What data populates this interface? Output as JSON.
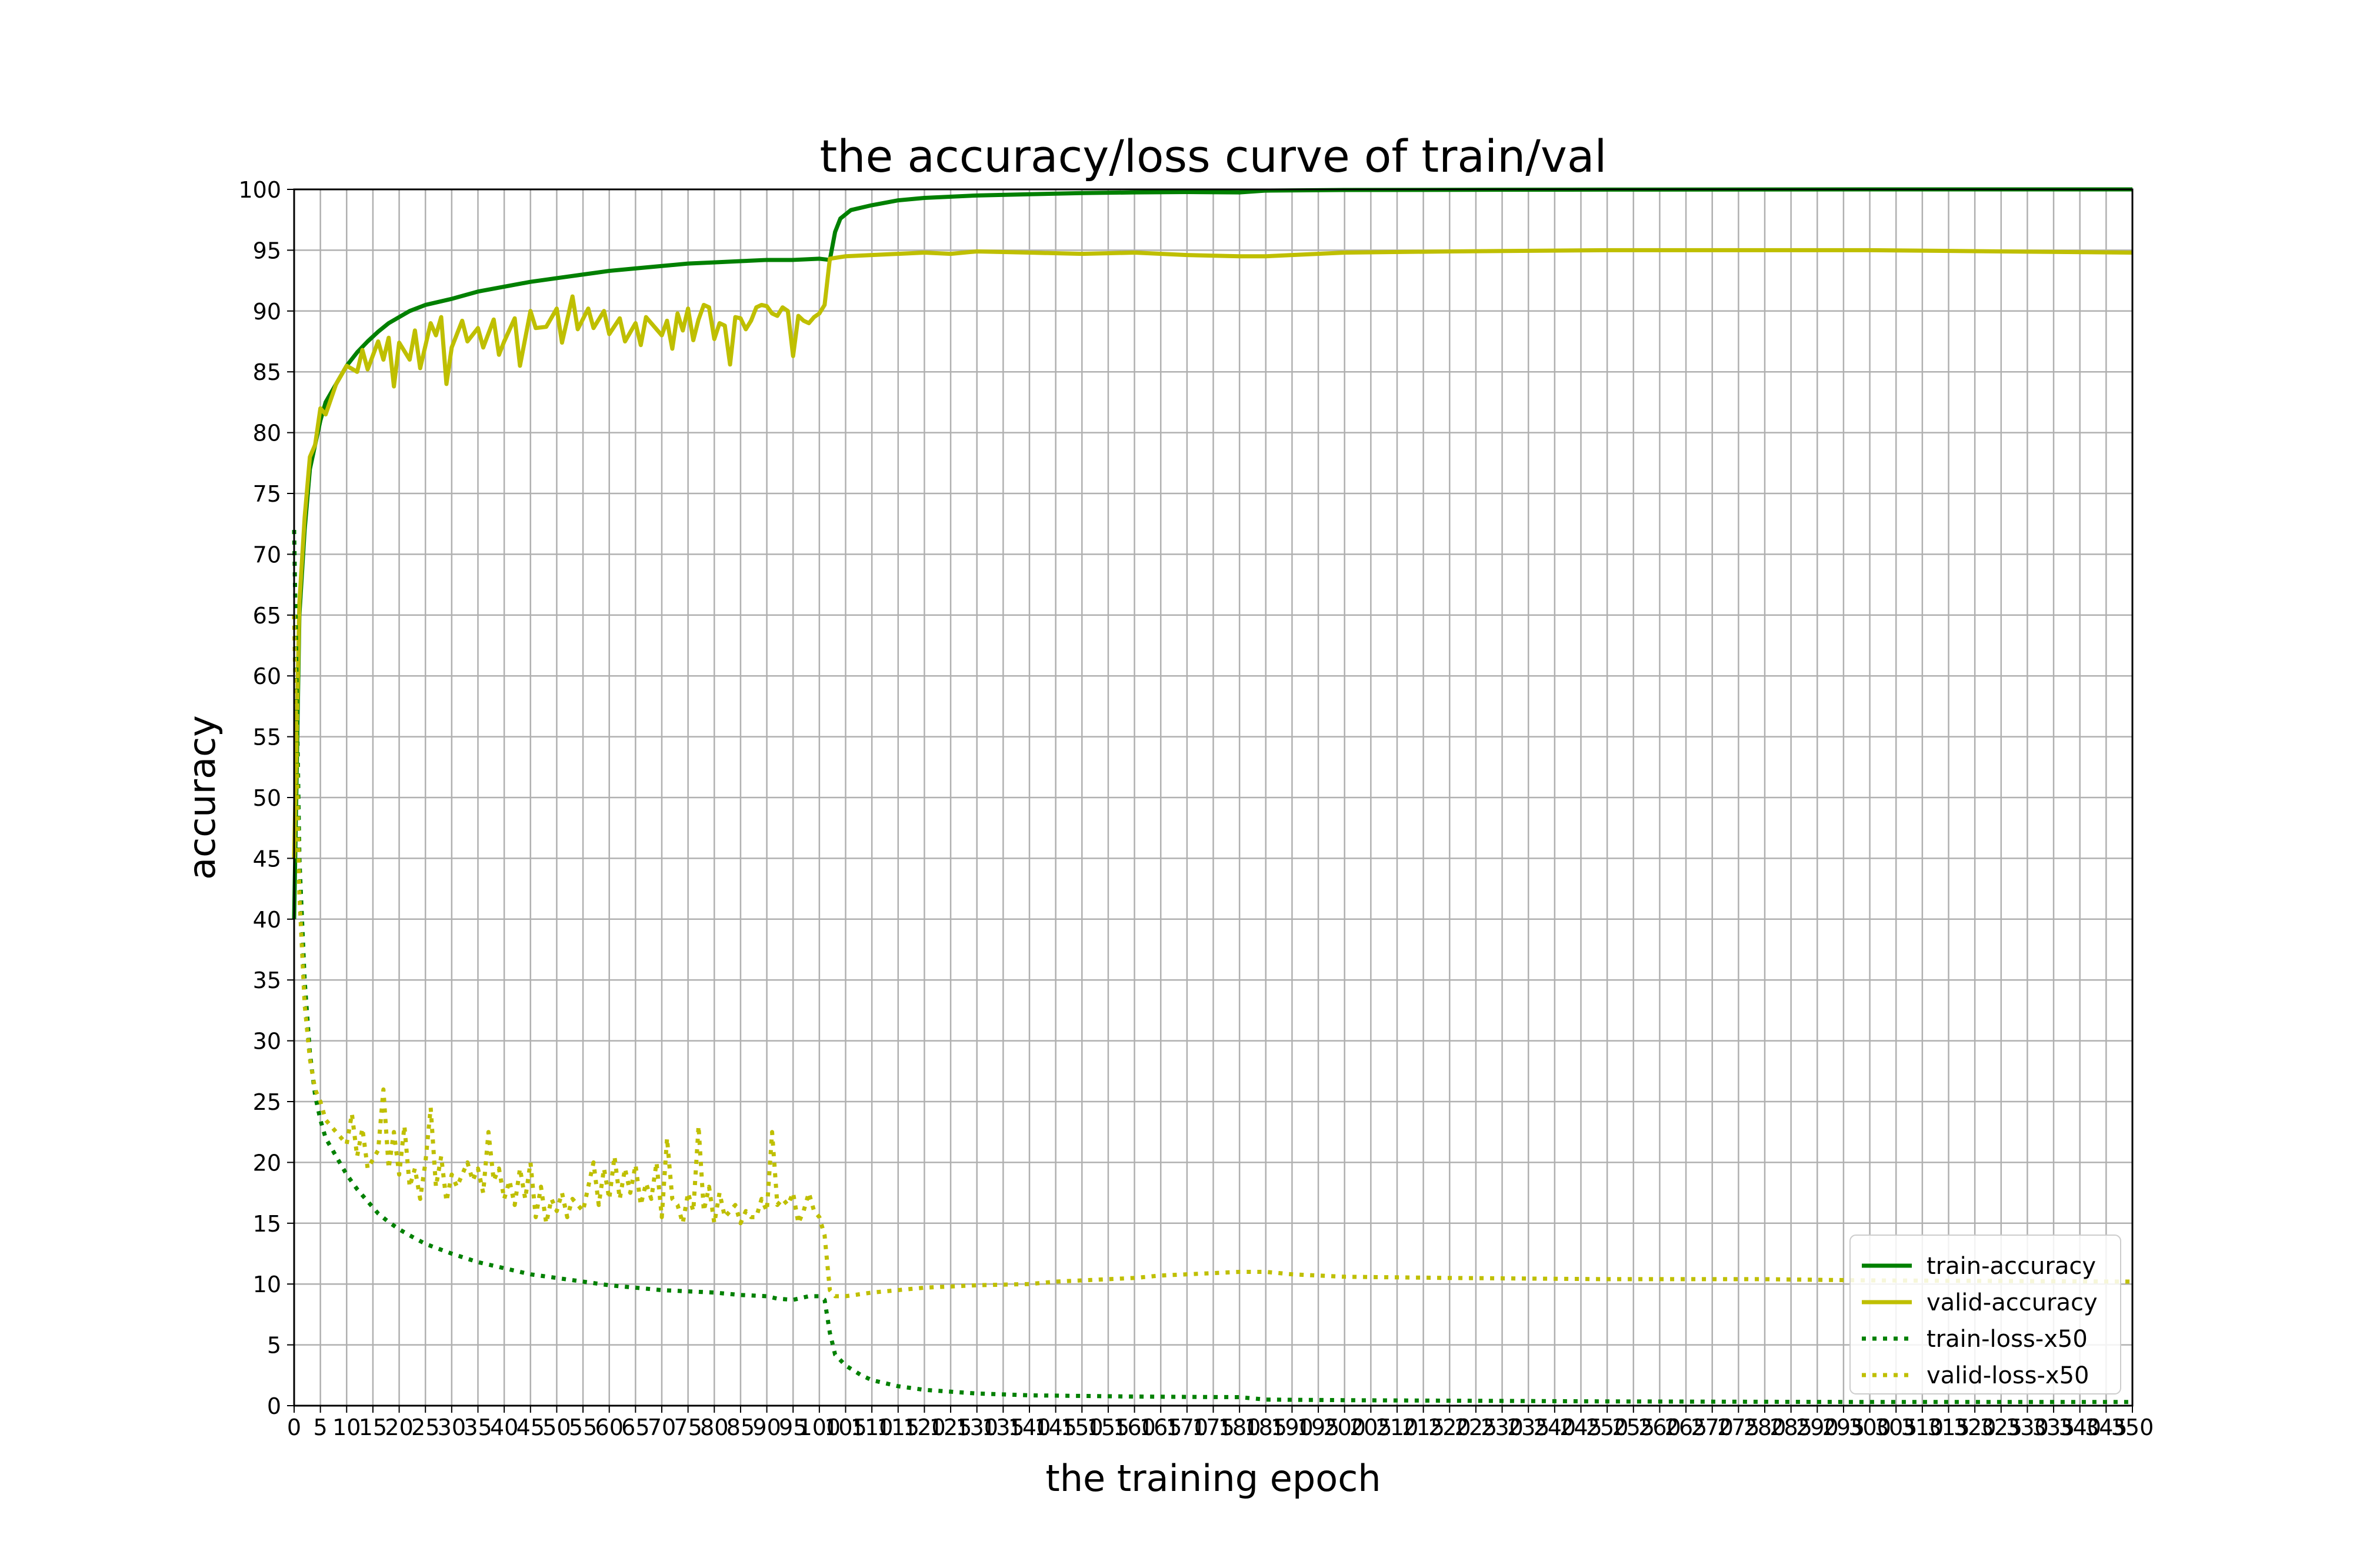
{
  "chart_data": {
    "type": "line",
    "title": "the accuracy/loss curve of train/val",
    "xlabel": "the training epoch",
    "ylabel": "accuracy",
    "xlim": [
      0,
      350
    ],
    "ylim": [
      0,
      100
    ],
    "x_tick_step": 5,
    "y_tick_step": 5,
    "grid": true,
    "legend_position": "lower-right",
    "series": [
      {
        "name": "train-accuracy",
        "color": "#008000",
        "style": "solid",
        "points": [
          [
            0,
            40
          ],
          [
            1,
            65
          ],
          [
            2,
            72
          ],
          [
            3,
            77
          ],
          [
            4,
            79
          ],
          [
            5,
            81
          ],
          [
            6,
            82.5
          ],
          [
            8,
            84
          ],
          [
            10,
            85.5
          ],
          [
            12,
            86.6
          ],
          [
            14,
            87.5
          ],
          [
            16,
            88.3
          ],
          [
            18,
            89
          ],
          [
            20,
            89.5
          ],
          [
            22,
            90
          ],
          [
            25,
            90.5
          ],
          [
            30,
            91
          ],
          [
            35,
            91.6
          ],
          [
            40,
            92
          ],
          [
            45,
            92.4
          ],
          [
            50,
            92.7
          ],
          [
            55,
            93
          ],
          [
            60,
            93.3
          ],
          [
            65,
            93.5
          ],
          [
            70,
            93.7
          ],
          [
            75,
            93.9
          ],
          [
            80,
            94
          ],
          [
            85,
            94.1
          ],
          [
            90,
            94.2
          ],
          [
            95,
            94.2
          ],
          [
            100,
            94.3
          ],
          [
            102,
            94.2
          ],
          [
            103,
            96.5
          ],
          [
            104,
            97.6
          ],
          [
            106,
            98.3
          ],
          [
            110,
            98.7
          ],
          [
            115,
            99.1
          ],
          [
            120,
            99.3
          ],
          [
            130,
            99.5
          ],
          [
            140,
            99.6
          ],
          [
            150,
            99.7
          ],
          [
            160,
            99.75
          ],
          [
            170,
            99.78
          ],
          [
            180,
            99.75
          ],
          [
            185,
            99.9
          ],
          [
            200,
            99.95
          ],
          [
            250,
            99.98
          ],
          [
            300,
            100
          ],
          [
            350,
            100
          ]
        ]
      },
      {
        "name": "valid-accuracy",
        "color": "#bfbf00",
        "style": "solid",
        "points": [
          [
            0,
            45
          ],
          [
            1,
            66
          ],
          [
            2,
            73
          ],
          [
            3,
            78
          ],
          [
            4,
            79
          ],
          [
            5,
            82
          ],
          [
            6,
            81.5
          ],
          [
            8,
            84
          ],
          [
            10,
            85.5
          ],
          [
            12,
            85
          ],
          [
            13,
            86.8
          ],
          [
            14,
            85.2
          ],
          [
            16,
            87.5
          ],
          [
            17,
            86
          ],
          [
            18,
            87.8
          ],
          [
            19,
            83.8
          ],
          [
            20,
            87.4
          ],
          [
            22,
            86
          ],
          [
            23,
            88.4
          ],
          [
            24,
            85.3
          ],
          [
            26,
            89
          ],
          [
            27,
            88
          ],
          [
            28,
            89.5
          ],
          [
            29,
            84
          ],
          [
            30,
            87
          ],
          [
            32,
            89.2
          ],
          [
            33,
            87.5
          ],
          [
            35,
            88.6
          ],
          [
            36,
            87
          ],
          [
            38,
            89.3
          ],
          [
            39,
            86.4
          ],
          [
            40,
            87.5
          ],
          [
            42,
            89.4
          ],
          [
            43,
            85.5
          ],
          [
            45,
            90
          ],
          [
            46,
            88.6
          ],
          [
            48,
            88.7
          ],
          [
            50,
            90.2
          ],
          [
            51,
            87.4
          ],
          [
            53,
            91.2
          ],
          [
            54,
            88.5
          ],
          [
            56,
            90.2
          ],
          [
            57,
            88.6
          ],
          [
            59,
            90
          ],
          [
            60,
            88.1
          ],
          [
            62,
            89.4
          ],
          [
            63,
            87.5
          ],
          [
            65,
            89
          ],
          [
            66,
            87.2
          ],
          [
            67,
            89.5
          ],
          [
            68,
            89
          ],
          [
            70,
            88
          ],
          [
            71,
            89.2
          ],
          [
            72,
            86.9
          ],
          [
            73,
            89.8
          ],
          [
            74,
            88.4
          ],
          [
            75,
            90.2
          ],
          [
            76,
            87.6
          ],
          [
            77,
            89.3
          ],
          [
            78,
            90.5
          ],
          [
            79,
            90.3
          ],
          [
            80,
            87.7
          ],
          [
            81,
            89
          ],
          [
            82,
            88.8
          ],
          [
            83,
            85.6
          ],
          [
            84,
            89.5
          ],
          [
            85,
            89.4
          ],
          [
            86,
            88.5
          ],
          [
            87,
            89.2
          ],
          [
            88,
            90.3
          ],
          [
            89,
            90.5
          ],
          [
            90,
            90.4
          ],
          [
            91,
            89.8
          ],
          [
            92,
            89.6
          ],
          [
            93,
            90.3
          ],
          [
            94,
            90
          ],
          [
            95,
            86.3
          ],
          [
            96,
            89.6
          ],
          [
            97,
            89.2
          ],
          [
            98,
            89
          ],
          [
            99,
            89.5
          ],
          [
            100,
            89.8
          ],
          [
            101,
            90.5
          ],
          [
            102,
            94.3
          ],
          [
            105,
            94.5
          ],
          [
            110,
            94.6
          ],
          [
            115,
            94.7
          ],
          [
            120,
            94.8
          ],
          [
            125,
            94.7
          ],
          [
            130,
            94.9
          ],
          [
            140,
            94.8
          ],
          [
            150,
            94.7
          ],
          [
            160,
            94.8
          ],
          [
            170,
            94.6
          ],
          [
            180,
            94.5
          ],
          [
            185,
            94.5
          ],
          [
            190,
            94.6
          ],
          [
            200,
            94.8
          ],
          [
            220,
            94.9
          ],
          [
            250,
            95
          ],
          [
            300,
            95
          ],
          [
            350,
            94.8
          ]
        ]
      },
      {
        "name": "train-loss-x50",
        "color": "#008000",
        "style": "dotted",
        "points": [
          [
            0,
            72
          ],
          [
            1,
            45
          ],
          [
            2,
            35
          ],
          [
            3,
            29
          ],
          [
            4,
            25.5
          ],
          [
            5,
            23.5
          ],
          [
            6,
            22
          ],
          [
            8,
            20.5
          ],
          [
            10,
            19
          ],
          [
            12,
            17.8
          ],
          [
            14,
            16.8
          ],
          [
            16,
            15.8
          ],
          [
            18,
            15.1
          ],
          [
            20,
            14.5
          ],
          [
            22,
            14
          ],
          [
            25,
            13.3
          ],
          [
            30,
            12.5
          ],
          [
            35,
            11.8
          ],
          [
            40,
            11.3
          ],
          [
            45,
            10.8
          ],
          [
            50,
            10.5
          ],
          [
            55,
            10.2
          ],
          [
            60,
            9.9
          ],
          [
            65,
            9.7
          ],
          [
            70,
            9.5
          ],
          [
            75,
            9.4
          ],
          [
            80,
            9.3
          ],
          [
            85,
            9.1
          ],
          [
            90,
            9
          ],
          [
            92,
            8.8
          ],
          [
            95,
            8.7
          ],
          [
            98,
            9
          ],
          [
            100,
            9
          ],
          [
            101,
            8.7
          ],
          [
            102,
            6
          ],
          [
            103,
            4.2
          ],
          [
            105,
            3.3
          ],
          [
            108,
            2.5
          ],
          [
            110,
            2.1
          ],
          [
            115,
            1.6
          ],
          [
            120,
            1.3
          ],
          [
            130,
            1
          ],
          [
            140,
            0.85
          ],
          [
            150,
            0.8
          ],
          [
            160,
            0.75
          ],
          [
            170,
            0.72
          ],
          [
            180,
            0.7
          ],
          [
            185,
            0.5
          ],
          [
            200,
            0.45
          ],
          [
            250,
            0.35
          ],
          [
            300,
            0.3
          ],
          [
            350,
            0.3
          ]
        ]
      },
      {
        "name": "valid-loss-x50",
        "color": "#bfbf00",
        "style": "dotted",
        "points": [
          [
            0,
            65
          ],
          [
            1,
            42
          ],
          [
            2,
            33
          ],
          [
            3,
            28.5
          ],
          [
            4,
            26
          ],
          [
            5,
            25
          ],
          [
            6,
            23.5
          ],
          [
            8,
            22.5
          ],
          [
            10,
            21.5
          ],
          [
            11,
            24
          ],
          [
            12,
            20.5
          ],
          [
            13,
            22.8
          ],
          [
            14,
            19.5
          ],
          [
            16,
            21
          ],
          [
            17,
            26
          ],
          [
            18,
            19.5
          ],
          [
            19,
            22.5
          ],
          [
            20,
            19
          ],
          [
            21,
            23
          ],
          [
            22,
            18
          ],
          [
            23,
            19.5
          ],
          [
            24,
            17
          ],
          [
            25,
            20
          ],
          [
            26,
            24.5
          ],
          [
            27,
            18
          ],
          [
            28,
            20.5
          ],
          [
            29,
            16.8
          ],
          [
            30,
            19
          ],
          [
            31,
            18
          ],
          [
            33,
            20
          ],
          [
            34,
            18.5
          ],
          [
            35,
            19.5
          ],
          [
            36,
            17.5
          ],
          [
            37,
            22.5
          ],
          [
            38,
            18.5
          ],
          [
            39,
            19.5
          ],
          [
            40,
            17
          ],
          [
            41,
            18.5
          ],
          [
            42,
            16.5
          ],
          [
            43,
            19.5
          ],
          [
            44,
            17
          ],
          [
            45,
            20
          ],
          [
            46,
            15.5
          ],
          [
            47,
            18
          ],
          [
            48,
            15
          ],
          [
            49,
            17
          ],
          [
            50,
            16
          ],
          [
            51,
            17.5
          ],
          [
            52,
            15.5
          ],
          [
            53,
            17
          ],
          [
            55,
            16
          ],
          [
            56,
            18
          ],
          [
            57,
            20
          ],
          [
            58,
            16.5
          ],
          [
            59,
            19.5
          ],
          [
            60,
            17
          ],
          [
            61,
            20.5
          ],
          [
            62,
            17
          ],
          [
            63,
            19.5
          ],
          [
            64,
            17.5
          ],
          [
            65,
            19.8
          ],
          [
            66,
            16.5
          ],
          [
            67,
            18.3
          ],
          [
            68,
            17
          ],
          [
            69,
            20
          ],
          [
            70,
            15.5
          ],
          [
            71,
            22
          ],
          [
            72,
            17
          ],
          [
            73,
            16.5
          ],
          [
            74,
            15
          ],
          [
            75,
            17.5
          ],
          [
            76,
            16
          ],
          [
            77,
            23
          ],
          [
            78,
            16
          ],
          [
            79,
            18
          ],
          [
            80,
            15
          ],
          [
            81,
            17.5
          ],
          [
            82,
            15.5
          ],
          [
            83,
            16
          ],
          [
            84,
            16.5
          ],
          [
            85,
            15
          ],
          [
            86,
            16
          ],
          [
            87,
            15.5
          ],
          [
            88,
            15.5
          ],
          [
            89,
            17
          ],
          [
            90,
            16
          ],
          [
            91,
            22.5
          ],
          [
            92,
            16.5
          ],
          [
            93,
            17
          ],
          [
            94,
            16.5
          ],
          [
            95,
            17.5
          ],
          [
            96,
            15
          ],
          [
            97,
            16
          ],
          [
            98,
            17.5
          ],
          [
            99,
            16
          ],
          [
            100,
            15.5
          ],
          [
            101,
            14
          ],
          [
            102,
            9.5
          ],
          [
            103,
            9
          ],
          [
            105,
            9
          ],
          [
            110,
            9.3
          ],
          [
            115,
            9.5
          ],
          [
            120,
            9.7
          ],
          [
            125,
            9.8
          ],
          [
            130,
            9.9
          ],
          [
            140,
            10
          ],
          [
            145,
            10.2
          ],
          [
            150,
            10.3
          ],
          [
            155,
            10.4
          ],
          [
            160,
            10.5
          ],
          [
            165,
            10.7
          ],
          [
            170,
            10.8
          ],
          [
            175,
            10.9
          ],
          [
            180,
            11
          ],
          [
            185,
            11
          ],
          [
            190,
            10.8
          ],
          [
            200,
            10.6
          ],
          [
            220,
            10.5
          ],
          [
            250,
            10.4
          ],
          [
            280,
            10.4
          ],
          [
            300,
            10.3
          ],
          [
            350,
            10.2
          ]
        ]
      }
    ]
  }
}
